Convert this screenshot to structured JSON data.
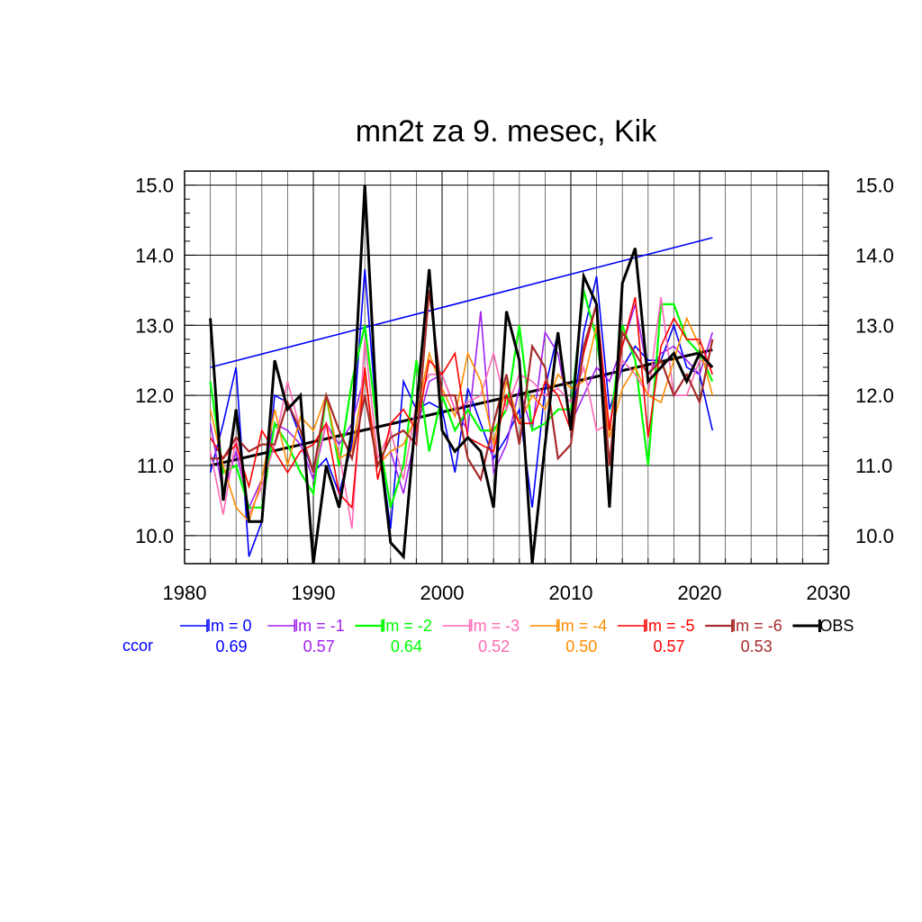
{
  "chart_data": {
    "type": "line",
    "title": "mn2t za 9. mesec, Kik",
    "xlabel": "",
    "ylabel": "",
    "xlim": [
      1980,
      2030
    ],
    "ylim": [
      9.6,
      15.2
    ],
    "x_ticks": [
      "1980",
      "1990",
      "2000",
      "2010",
      "2020",
      "2030"
    ],
    "y_ticks": [
      "10.0",
      "11.0",
      "12.0",
      "13.0",
      "14.0",
      "15.0"
    ],
    "x_major": [
      1980,
      1990,
      2000,
      2010,
      2020,
      2030
    ],
    "y_major": [
      10,
      11,
      12,
      13,
      14,
      15
    ],
    "grid": true,
    "x": [
      1982,
      1983,
      1984,
      1985,
      1986,
      1987,
      1988,
      1989,
      1990,
      1991,
      1992,
      1993,
      1994,
      1995,
      1996,
      1997,
      1998,
      1999,
      2000,
      2001,
      2002,
      2003,
      2004,
      2005,
      2006,
      2007,
      2008,
      2009,
      2010,
      2011,
      2012,
      2013,
      2014,
      2015,
      2016,
      2017,
      2018,
      2019,
      2020,
      2021
    ],
    "ccor_label": "ccor",
    "series": [
      {
        "name": "lm = 0",
        "color": "#0000ff",
        "width": 1.6,
        "ccor": "0.69",
        "values": [
          10.9,
          11.6,
          12.4,
          9.7,
          10.2,
          12.0,
          11.9,
          11.4,
          10.9,
          11.1,
          10.6,
          11.3,
          13.8,
          11.5,
          10.1,
          12.2,
          11.8,
          11.9,
          11.8,
          10.9,
          12.1,
          11.6,
          11.1,
          11.4,
          11.8,
          10.4,
          12.1,
          12.9,
          11.5,
          12.9,
          13.7,
          11.8,
          12.4,
          12.7,
          12.5,
          12.5,
          13.0,
          12.4,
          12.3,
          11.5
        ]
      },
      {
        "name": "lm = -1",
        "color": "#a020f0",
        "width": 1.6,
        "ccor": "0.57",
        "values": [
          11.6,
          10.6,
          11.2,
          10.4,
          10.8,
          11.6,
          11.5,
          11.3,
          10.8,
          11.6,
          11.3,
          11.6,
          12.3,
          11.0,
          11.2,
          10.6,
          11.5,
          12.2,
          12.3,
          11.8,
          11.5,
          13.2,
          10.9,
          11.3,
          12.1,
          11.5,
          12.9,
          12.6,
          11.6,
          12.0,
          12.4,
          12.2,
          12.7,
          13.3,
          12.3,
          12.6,
          12.7,
          12.5,
          12.3,
          12.9
        ]
      },
      {
        "name": "lm = -2",
        "color": "#00ff00",
        "width": 2.2,
        "ccor": "0.64",
        "values": [
          12.2,
          10.9,
          11.0,
          10.4,
          10.4,
          11.6,
          11.3,
          10.9,
          10.6,
          12.0,
          11.0,
          12.2,
          13.0,
          11.5,
          10.4,
          11.0,
          12.5,
          11.2,
          12.0,
          11.5,
          11.8,
          11.5,
          11.5,
          11.8,
          13.0,
          11.5,
          11.6,
          11.8,
          11.8,
          13.5,
          12.8,
          11.5,
          13.0,
          12.5,
          11.0,
          13.3,
          13.3,
          12.8,
          12.6,
          12.2
        ]
      },
      {
        "name": "lm = -3",
        "color": "#ff69b4",
        "width": 1.6,
        "ccor": "0.52",
        "values": [
          11.2,
          10.3,
          11.4,
          10.3,
          10.7,
          11.3,
          12.2,
          11.5,
          10.9,
          11.6,
          11.2,
          10.1,
          12.8,
          11.1,
          11.5,
          10.8,
          11.9,
          12.3,
          12.3,
          11.8,
          11.9,
          12.0,
          12.6,
          11.8,
          12.3,
          12.2,
          12.0,
          12.1,
          11.9,
          12.4,
          11.5,
          11.6,
          12.5,
          12.3,
          12.0,
          13.4,
          12.0,
          12.0,
          12.5,
          12.4
        ]
      },
      {
        "name": "lm = -4",
        "color": "#ff8c00",
        "width": 1.6,
        "ccor": "0.50",
        "values": [
          11.8,
          11.0,
          10.4,
          10.2,
          10.8,
          11.8,
          11.0,
          11.7,
          11.5,
          12.0,
          11.1,
          11.2,
          12.3,
          11.0,
          11.2,
          11.3,
          11.7,
          12.6,
          12.1,
          11.7,
          12.6,
          12.2,
          11.3,
          12.2,
          11.6,
          12.0,
          11.8,
          12.3,
          12.1,
          12.2,
          13.0,
          11.4,
          12.1,
          12.4,
          12.0,
          11.9,
          12.5,
          13.1,
          12.7,
          12.0
        ]
      },
      {
        "name": "lm = -5",
        "color": "#ff0000",
        "width": 1.6,
        "ccor": "0.57",
        "values": [
          11.4,
          11.1,
          11.3,
          10.7,
          11.5,
          11.2,
          10.9,
          11.2,
          11.3,
          11.6,
          10.6,
          10.4,
          12.4,
          10.8,
          11.6,
          11.8,
          11.5,
          12.5,
          12.3,
          12.6,
          11.4,
          11.3,
          11.2,
          12.0,
          11.6,
          11.6,
          12.2,
          12.0,
          11.5,
          12.6,
          13.3,
          11.5,
          12.7,
          13.4,
          11.4,
          12.7,
          13.1,
          12.8,
          12.8,
          12.3
        ]
      },
      {
        "name": "lm = -6",
        "color": "#a52a2a",
        "width": 2.2,
        "ccor": "0.53",
        "values": [
          11.1,
          11.1,
          11.4,
          11.2,
          11.3,
          11.3,
          11.9,
          11.5,
          10.9,
          12.0,
          11.5,
          11.1,
          12.0,
          11.0,
          11.4,
          11.5,
          11.3,
          13.5,
          12.0,
          12.0,
          11.1,
          10.8,
          11.6,
          12.3,
          11.3,
          12.7,
          12.4,
          11.1,
          11.3,
          12.7,
          13.3,
          11.0,
          12.9,
          12.6,
          12.3,
          12.5,
          12.0,
          12.3,
          11.9,
          12.8
        ]
      },
      {
        "name": "OBS",
        "color": "#000000",
        "width": 3,
        "ccor": "",
        "values": [
          13.1,
          10.5,
          11.8,
          10.2,
          10.2,
          12.5,
          11.8,
          12.0,
          9.6,
          11.0,
          10.4,
          11.5,
          15.0,
          11.5,
          9.9,
          9.7,
          11.8,
          13.8,
          11.5,
          11.2,
          11.4,
          11.2,
          10.4,
          13.2,
          12.5,
          9.6,
          11.3,
          12.9,
          11.5,
          13.7,
          13.3,
          10.4,
          13.6,
          14.1,
          12.2,
          12.4,
          12.6,
          12.2,
          12.6,
          12.4
        ]
      }
    ],
    "trend_lines": [
      {
        "color": "#0000ff",
        "width": 1.6,
        "x": [
          1982,
          2021
        ],
        "y": [
          12.4,
          14.25
        ]
      },
      {
        "color": "#000000",
        "width": 3,
        "x": [
          1982,
          2021
        ],
        "y": [
          11.0,
          12.65
        ]
      }
    ]
  }
}
